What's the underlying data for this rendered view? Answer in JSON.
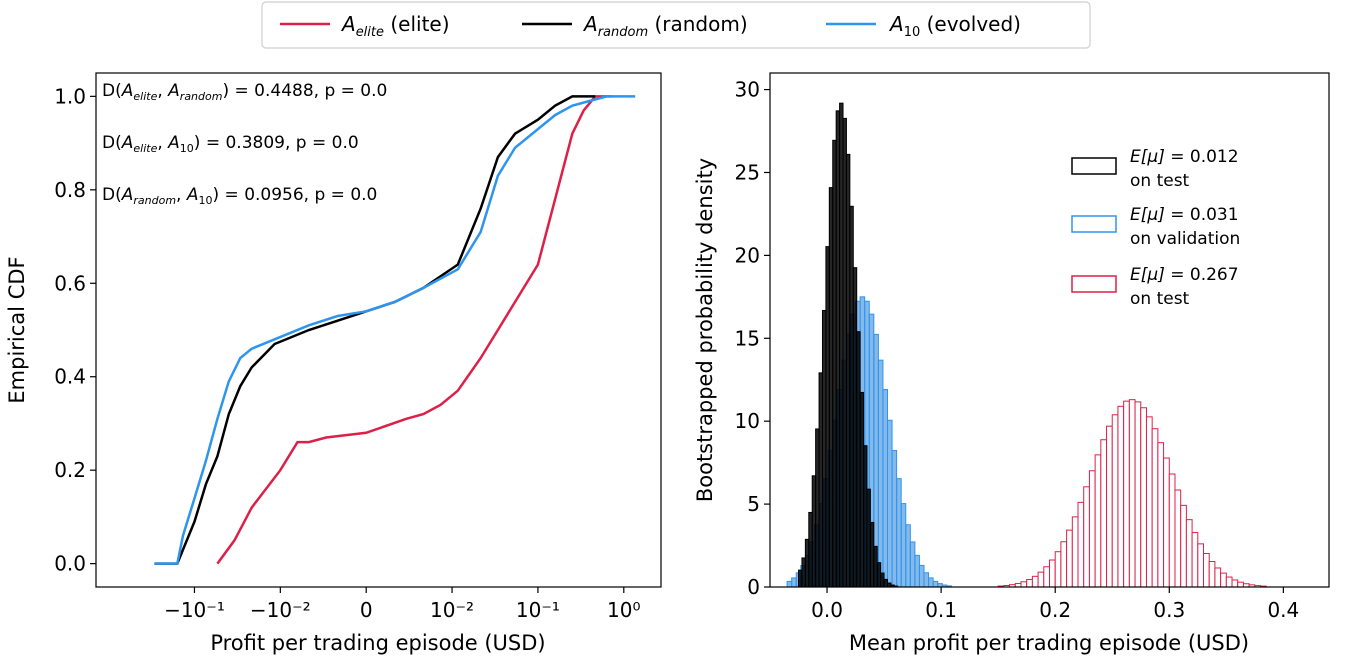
{
  "colors": {
    "elite": "#dc2048",
    "random": "#000000",
    "evolved": "#2e95ee"
  },
  "legend": [
    {
      "key": "elite",
      "symbol": "A",
      "sub": "elite",
      "suffix": " (elite)"
    },
    {
      "key": "random",
      "symbol": "A",
      "sub": "random",
      "suffix": " (random)"
    },
    {
      "key": "evolved",
      "symbol": "A",
      "sub": "10",
      "suffix": " (evolved)"
    }
  ],
  "chart_data": [
    {
      "type": "line",
      "xlabel": "Profit per trading episode (USD)",
      "ylabel": "Empirical CDF",
      "xscale": "symlog",
      "xticks": [
        "−10⁻¹",
        "−10⁻²",
        "0",
        "10⁻²",
        "10⁻¹",
        "10⁰"
      ],
      "yticks": [
        "0.0",
        "0.2",
        "0.4",
        "0.6",
        "0.8",
        "1.0"
      ],
      "ylim": [
        0,
        1
      ],
      "annotations": [
        {
          "text": "D(A_elite, A_random) = 0.4488, p = 0.0",
          "pair": [
            "elite",
            "random"
          ],
          "value": "= 0.4488, p = 0.0"
        },
        {
          "text": "D(A_elite, A_10) = 0.3809, p = 0.0",
          "pair": [
            "elite",
            "10"
          ],
          "value": "= 0.3809, p = 0.0"
        },
        {
          "text": "D(A_random, A_10)  = 0.0956, p = 0.0",
          "pair": [
            "random",
            "10"
          ],
          "value": " = 0.0956, p = 0.0"
        }
      ],
      "series": [
        {
          "name": "A_elite (elite)",
          "key": "elite",
          "x": [
            -2.6,
            -2.3,
            -2.0,
            -1.5,
            -1.2,
            -1.0,
            -0.7,
            0.0,
            0.7,
            1.0,
            1.3,
            1.6,
            2.0,
            2.3,
            2.6,
            3.0,
            3.3,
            3.6,
            3.8,
            4.0,
            4.1,
            4.3
          ],
          "y": [
            0.0,
            0.05,
            0.12,
            0.2,
            0.26,
            0.26,
            0.27,
            0.28,
            0.31,
            0.32,
            0.34,
            0.37,
            0.44,
            0.5,
            0.56,
            0.64,
            0.78,
            0.92,
            0.97,
            1.0,
            1.0,
            1.0
          ]
        },
        {
          "name": "A_random (random)",
          "key": "random",
          "x": [
            -3.7,
            -3.3,
            -3.2,
            -3.0,
            -2.8,
            -2.6,
            -2.4,
            -2.2,
            -2.0,
            -1.6,
            -1.0,
            -0.5,
            0.0,
            0.5,
            1.0,
            1.6,
            2.0,
            2.3,
            2.6,
            3.0,
            3.3,
            3.6,
            3.9,
            4.0
          ],
          "y": [
            0.0,
            0.0,
            0.03,
            0.09,
            0.17,
            0.23,
            0.32,
            0.38,
            0.42,
            0.47,
            0.5,
            0.52,
            0.54,
            0.56,
            0.59,
            0.64,
            0.76,
            0.87,
            0.92,
            0.95,
            0.98,
            1.0,
            1.0,
            1.0
          ]
        },
        {
          "name": "A_10 (evolved)",
          "key": "evolved",
          "x": [
            -3.7,
            -3.3,
            -3.2,
            -3.0,
            -2.8,
            -2.6,
            -2.4,
            -2.2,
            -2.0,
            -1.6,
            -1.0,
            -0.5,
            0.0,
            0.5,
            1.0,
            1.6,
            2.0,
            2.3,
            2.6,
            3.0,
            3.3,
            3.6,
            3.9,
            4.2,
            4.7
          ],
          "y": [
            0.0,
            0.0,
            0.06,
            0.14,
            0.22,
            0.31,
            0.39,
            0.44,
            0.46,
            0.48,
            0.51,
            0.53,
            0.54,
            0.56,
            0.59,
            0.63,
            0.71,
            0.83,
            0.89,
            0.93,
            0.96,
            0.98,
            0.99,
            1.0,
            1.0
          ]
        }
      ]
    },
    {
      "type": "bar",
      "xlabel": "Mean profit per trading episode (USD)",
      "ylabel": "Bootstrapped probability density",
      "xlim": [
        -0.05,
        0.44
      ],
      "ylim": [
        0,
        31
      ],
      "xticks": [
        "0.0",
        "0.1",
        "0.2",
        "0.3",
        "0.4"
      ],
      "yticks": [
        "0",
        "5",
        "10",
        "15",
        "20",
        "25",
        "30"
      ],
      "legend": [
        {
          "key": "random",
          "label": "E[μ] =",
          "value": " 0.012",
          "line2": "on test"
        },
        {
          "key": "evolved",
          "label": "E[μ] =",
          "value": " 0.031",
          "line2": "on validation"
        },
        {
          "key": "elite",
          "label": "E[μ] =",
          "value": " 0.267",
          "line2": "on test"
        }
      ],
      "series": [
        {
          "name": "E[μ] = 0.012 on test",
          "key": "random",
          "mean": 0.012,
          "sd": 0.0137,
          "peak": 29.2,
          "range": [
            -0.025,
            0.06
          ],
          "bin": 0.003
        },
        {
          "name": "E[μ] = 0.031 on validation",
          "key": "evolved",
          "mean": 0.031,
          "sd": 0.0228,
          "peak": 17.5,
          "range": [
            -0.035,
            0.125
          ],
          "bin": 0.004
        },
        {
          "name": "E[μ] = 0.267 on test",
          "key": "elite",
          "mean": 0.267,
          "sd": 0.0353,
          "peak": 11.3,
          "range": [
            0.14,
            0.43
          ],
          "bin": 0.005
        }
      ]
    }
  ]
}
